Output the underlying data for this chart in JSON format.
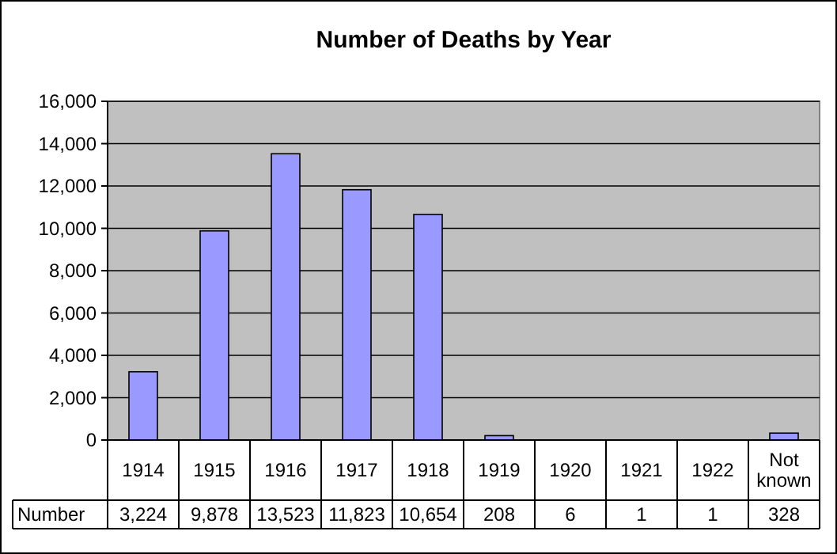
{
  "chart_data": {
    "type": "bar",
    "title": "Number of Deaths by Year",
    "categories": [
      "1914",
      "1915",
      "1916",
      "1917",
      "1918",
      "1919",
      "1920",
      "1921",
      "1922",
      "Not known"
    ],
    "series": [
      {
        "name": "Number",
        "color": "#9999ff",
        "values": [
          3224,
          9878,
          13523,
          11823,
          10654,
          208,
          6,
          1,
          1,
          328
        ],
        "value_labels": [
          "3,224",
          "9,878",
          "13,523",
          "11,823",
          "10,654",
          "208",
          "6",
          "1",
          "1",
          "328"
        ]
      }
    ],
    "ylim": [
      0,
      16000
    ],
    "yticks": [
      {
        "value": 0,
        "label": "0"
      },
      {
        "value": 2000,
        "label": "2,000"
      },
      {
        "value": 4000,
        "label": "4,000"
      },
      {
        "value": 6000,
        "label": "6,000"
      },
      {
        "value": 8000,
        "label": "8,000"
      },
      {
        "value": 10000,
        "label": "10,000"
      },
      {
        "value": 12000,
        "label": "12,000"
      },
      {
        "value": 14000,
        "label": "14,000"
      },
      {
        "value": 16000,
        "label": "16,000"
      }
    ],
    "grid": "y"
  }
}
